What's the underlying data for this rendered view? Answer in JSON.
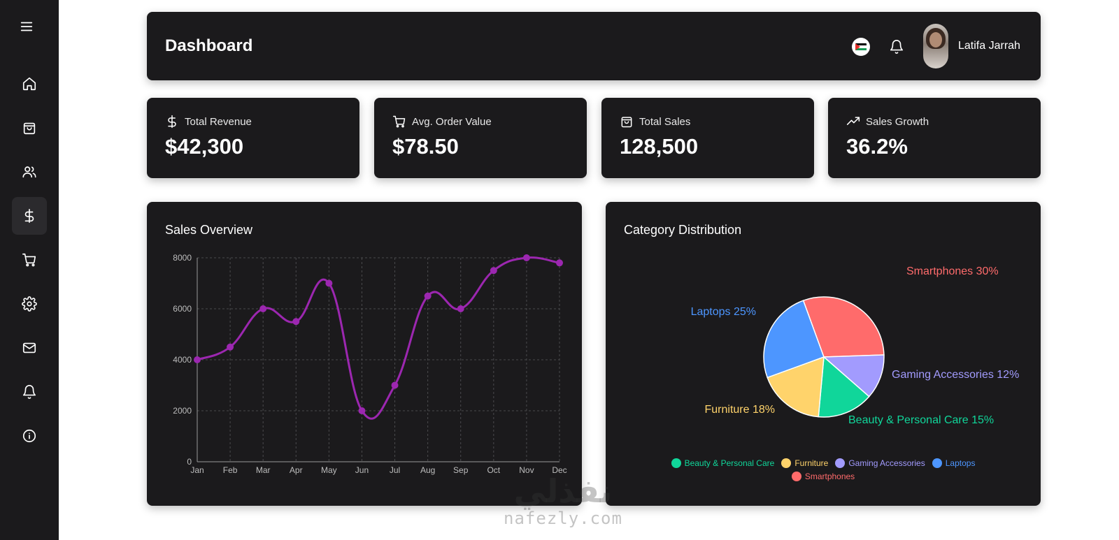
{
  "header": {
    "title": "Dashboard",
    "user_name": "Latifa Jarrah",
    "flag_icon": "palestine-flag-icon"
  },
  "sidebar": {
    "items": [
      {
        "icon": "home-icon"
      },
      {
        "icon": "shopping-bag-icon"
      },
      {
        "icon": "users-icon"
      },
      {
        "icon": "dollar-icon",
        "active": true
      },
      {
        "icon": "cart-icon"
      },
      {
        "icon": "settings-icon"
      },
      {
        "icon": "mail-icon"
      },
      {
        "icon": "bell-icon"
      },
      {
        "icon": "info-icon"
      }
    ]
  },
  "stats": [
    {
      "icon": "dollar-icon",
      "label": "Total Revenue",
      "value": "$42,300"
    },
    {
      "icon": "cart-icon",
      "label": "Avg. Order Value",
      "value": "$78.50"
    },
    {
      "icon": "shopping-bag-icon",
      "label": "Total Sales",
      "value": "128,500"
    },
    {
      "icon": "trending-up-icon",
      "label": "Sales Growth",
      "value": "36.2%"
    }
  ],
  "sales_overview": {
    "title": "Sales Overview"
  },
  "category_distribution": {
    "title": "Category Distribution",
    "legend": [
      "Beauty & Personal Care",
      "Furniture",
      "Gaming Accessories",
      "Laptops",
      "Smartphones"
    ]
  },
  "watermark": {
    "ar": "نفذلي",
    "en": "nafezly.com"
  },
  "chart_data": [
    {
      "type": "line",
      "title": "Sales Overview",
      "categories": [
        "Jan",
        "Feb",
        "Mar",
        "Apr",
        "May",
        "Jun",
        "Jul",
        "Aug",
        "Sep",
        "Oct",
        "Nov",
        "Dec"
      ],
      "series": [
        {
          "values": [
            4000,
            4500,
            6000,
            5500,
            7000,
            2000,
            3000,
            6500,
            6000,
            7500,
            8000,
            7800
          ],
          "color": "#9c27b0"
        }
      ],
      "ylim": [
        0,
        8000
      ],
      "yticks": [
        0,
        2000,
        4000,
        6000,
        8000
      ],
      "grid": true,
      "smooth": true
    },
    {
      "type": "pie",
      "title": "Category Distribution",
      "slices": [
        {
          "label": "Smartphones",
          "value": 30,
          "display": "Smartphones 30%",
          "color": "#ff6b6b"
        },
        {
          "label": "Gaming Accessories",
          "value": 12,
          "display": "Gaming Accessories 12%",
          "color": "#a29bfe"
        },
        {
          "label": "Beauty & Personal Care",
          "value": 15,
          "display": "Beauty & Personal Care 15%",
          "color": "#10d69a"
        },
        {
          "label": "Furniture",
          "value": 18,
          "display": "Furniture 18%",
          "color": "#ffd36b"
        },
        {
          "label": "Laptops",
          "value": 25,
          "display": "Laptops 25%",
          "color": "#4d96ff"
        }
      ],
      "legend": "bottom"
    }
  ]
}
